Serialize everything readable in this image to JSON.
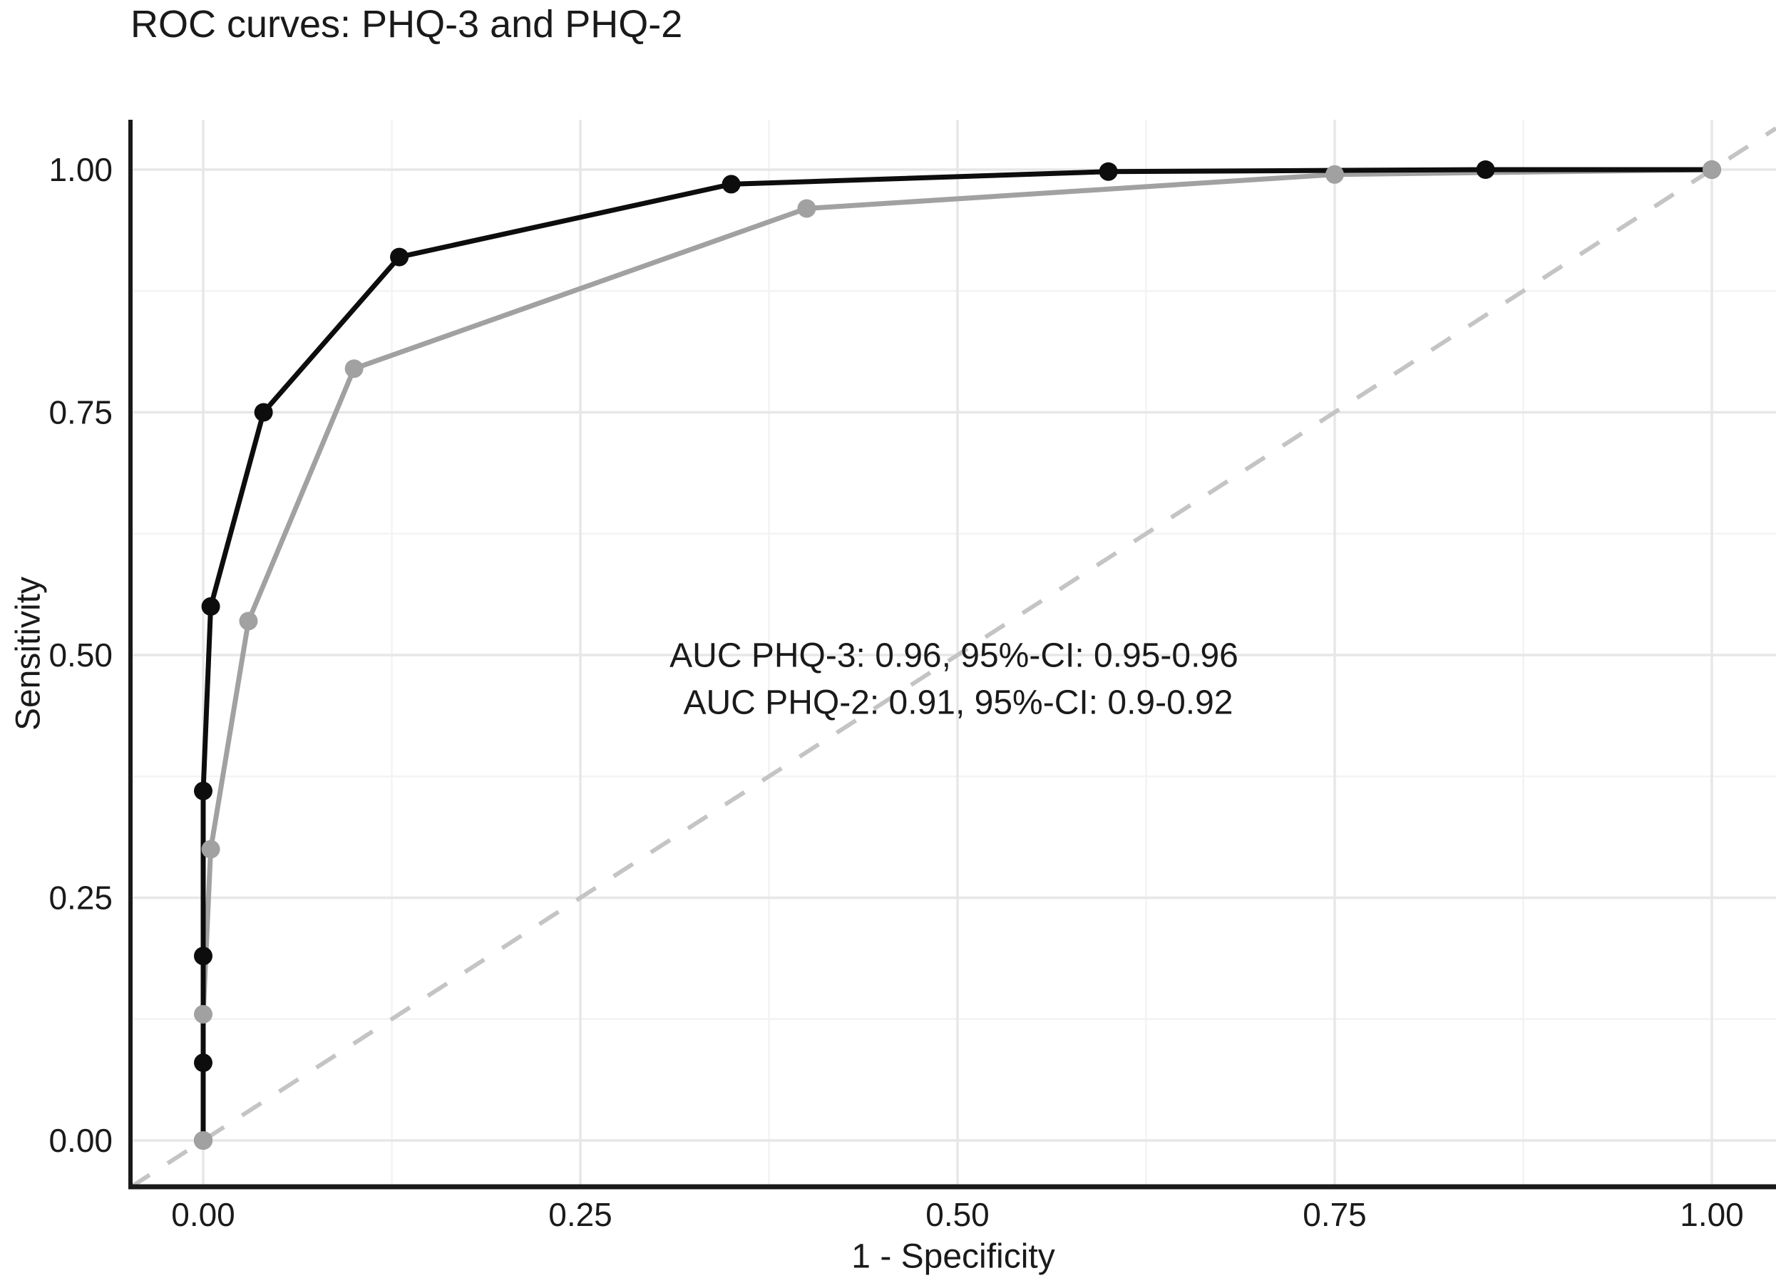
{
  "chart_data": {
    "type": "line",
    "title": "ROC curves: PHQ-3 and PHQ-2",
    "xlabel": "1 - Specificity",
    "ylabel": "Sensitivity",
    "xlim": [
      -0.05,
      1.05
    ],
    "ylim": [
      -0.05,
      1.05
    ],
    "grid": true,
    "legend_position": "none",
    "x_ticks": {
      "values": [
        0,
        0.25,
        0.5,
        0.75,
        1.0
      ],
      "labels": [
        "0.00",
        "0.25",
        "0.50",
        "0.75",
        "1.00"
      ]
    },
    "y_ticks": {
      "values": [
        0,
        0.25,
        0.5,
        0.75,
        1.0
      ],
      "labels": [
        "0.00",
        "0.25",
        "0.50",
        "0.75",
        "1.00"
      ]
    },
    "x_minor_ticks": [
      0.125,
      0.375,
      0.625,
      0.875
    ],
    "y_minor_ticks": [
      0.125,
      0.375,
      0.625,
      0.875
    ],
    "series": [
      {
        "name": "PHQ-3",
        "color": "#0d0d0d",
        "marker": "circle",
        "auc": 0.96,
        "ci_95": "0.95-0.96",
        "points": [
          [
            0,
            0
          ],
          [
            0,
            0.08
          ],
          [
            0,
            0.19
          ],
          [
            0,
            0.36
          ],
          [
            0.005,
            0.55
          ],
          [
            0.04,
            0.75
          ],
          [
            0.13,
            0.91
          ],
          [
            0.35,
            0.985
          ],
          [
            0.6,
            0.998
          ],
          [
            0.85,
            1.0
          ],
          [
            1.0,
            1.0
          ]
        ]
      },
      {
        "name": "PHQ-2",
        "color": "#a1a1a1",
        "marker": "circle",
        "auc": 0.91,
        "ci_95": "0.9-0.92",
        "points": [
          [
            0,
            0
          ],
          [
            0,
            0.13
          ],
          [
            0.005,
            0.3
          ],
          [
            0.03,
            0.535
          ],
          [
            0.1,
            0.795
          ],
          [
            0.4,
            0.96
          ],
          [
            0.75,
            0.995
          ],
          [
            1.0,
            1.0
          ]
        ]
      }
    ],
    "reference_line": {
      "from": [
        0,
        0
      ],
      "to": [
        1,
        1
      ],
      "style": "dashed",
      "color": "#c4c4c4"
    },
    "annotations": [
      "AUC PHQ-3: 0.96, 95%-CI: 0.95-0.96",
      "AUC PHQ-2: 0.91, 95%-CI: 0.9-0.92"
    ],
    "colors": {
      "background": "#ffffff",
      "axis_line": "#1a1a1a",
      "grid_major": "#e7e7e7",
      "grid_minor": "#f3f3f3",
      "text": "#1a1a1a"
    }
  }
}
